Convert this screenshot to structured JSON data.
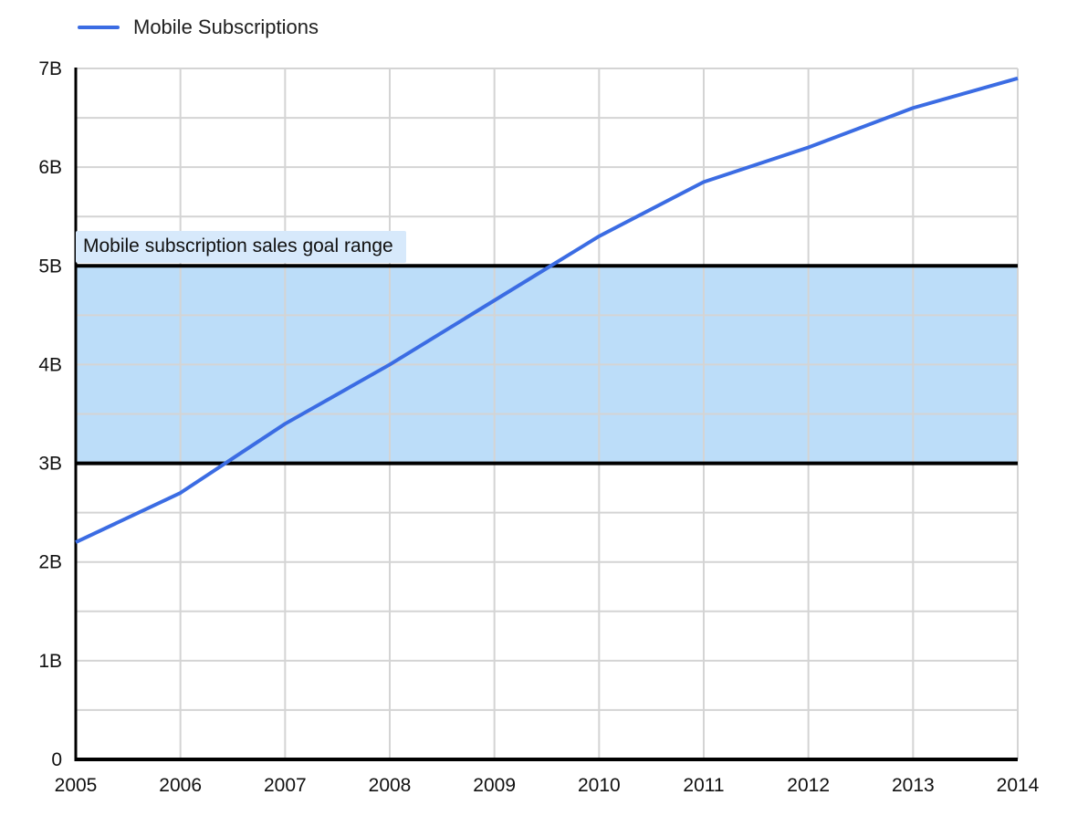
{
  "legend": {
    "label": "Mobile Subscriptions"
  },
  "chart_data": {
    "type": "line",
    "title": "",
    "x": [
      2005,
      2006,
      2007,
      2008,
      2009,
      2010,
      2011,
      2012,
      2013,
      2014
    ],
    "xtick_labels": [
      "2005",
      "2006",
      "2007",
      "2008",
      "2009",
      "2010",
      "2011",
      "2012",
      "2013",
      "2014"
    ],
    "series": [
      {
        "name": "Mobile Subscriptions",
        "values": [
          2.2,
          2.7,
          3.4,
          4.0,
          4.65,
          5.3,
          5.85,
          6.2,
          6.6,
          6.9
        ]
      }
    ],
    "xlabel": "",
    "ylabel": "",
    "ylim": [
      0,
      7
    ],
    "yticks": {
      "values": [
        0,
        1,
        2,
        3,
        4,
        5,
        6,
        7
      ],
      "labels": [
        "0",
        "1B",
        "2B",
        "3B",
        "4B",
        "5B",
        "6B",
        "7B"
      ]
    },
    "y_minor_step": 0.5,
    "grid": true,
    "legend_position": "top-left",
    "band": {
      "label": "Mobile subscription sales goal range",
      "from": 3,
      "to": 5,
      "fill": "#BCDDF9",
      "label_bg": "#D7E9FB",
      "border_color": "#000000"
    },
    "colors": {
      "series": "#3B6CE3",
      "grid": "#D4D4D4",
      "axis": "#000000",
      "text": "#111111"
    }
  }
}
